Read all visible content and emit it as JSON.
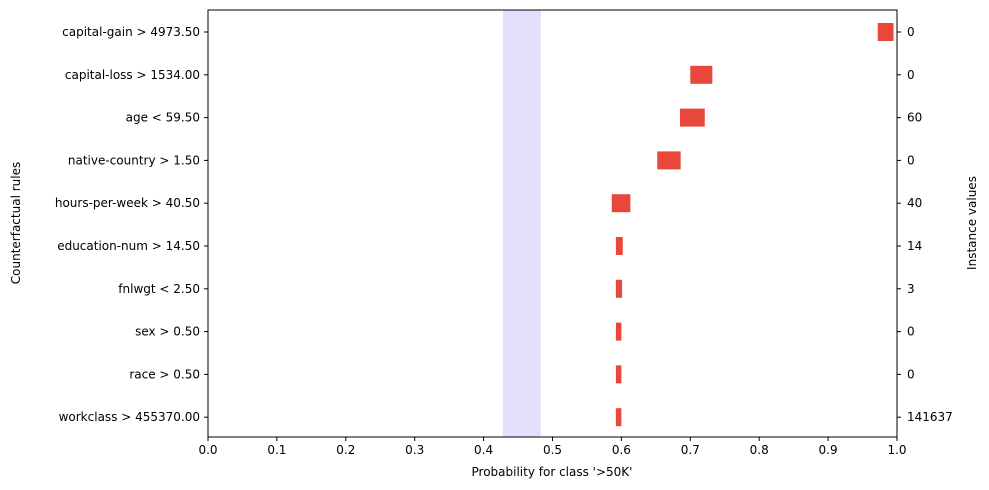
{
  "chart_data": {
    "type": "bar",
    "orientation": "horizontal",
    "xlabel": "Probability for class '>50K'",
    "ylabel": "Counterfactual rules",
    "y2label": "Instance values",
    "xlim": [
      0.0,
      1.0
    ],
    "xticks": [
      "0.0",
      "0.1",
      "0.2",
      "0.3",
      "0.4",
      "0.5",
      "0.6",
      "0.7",
      "0.8",
      "0.9",
      "1.0"
    ],
    "grid": false,
    "baseline_band": {
      "low": 0.428,
      "high": 0.483,
      "color": "#e2e0fb"
    },
    "bar_color": "#e8483c",
    "rules": [
      {
        "label": "capital-gain > 4973.50",
        "low": 0.972,
        "high": 0.995,
        "instance_value": "0"
      },
      {
        "label": "capital-loss > 1534.00",
        "low": 0.7,
        "high": 0.732,
        "instance_value": "0"
      },
      {
        "label": "age < 59.50",
        "low": 0.685,
        "high": 0.721,
        "instance_value": "60"
      },
      {
        "label": "native-country > 1.50",
        "low": 0.652,
        "high": 0.686,
        "instance_value": "0"
      },
      {
        "label": "hours-per-week > 40.50",
        "low": 0.586,
        "high": 0.613,
        "instance_value": "40"
      },
      {
        "label": "education-num > 14.50",
        "low": 0.592,
        "high": 0.602,
        "instance_value": "14"
      },
      {
        "label": "fnlwgt < 2.50",
        "low": 0.592,
        "high": 0.601,
        "instance_value": "3"
      },
      {
        "label": "sex > 0.50",
        "low": 0.592,
        "high": 0.6,
        "instance_value": "0"
      },
      {
        "label": "race > 0.50",
        "low": 0.592,
        "high": 0.6,
        "instance_value": "0"
      },
      {
        "label": "workclass > 455370.00",
        "low": 0.592,
        "high": 0.6,
        "instance_value": "141637"
      }
    ]
  }
}
